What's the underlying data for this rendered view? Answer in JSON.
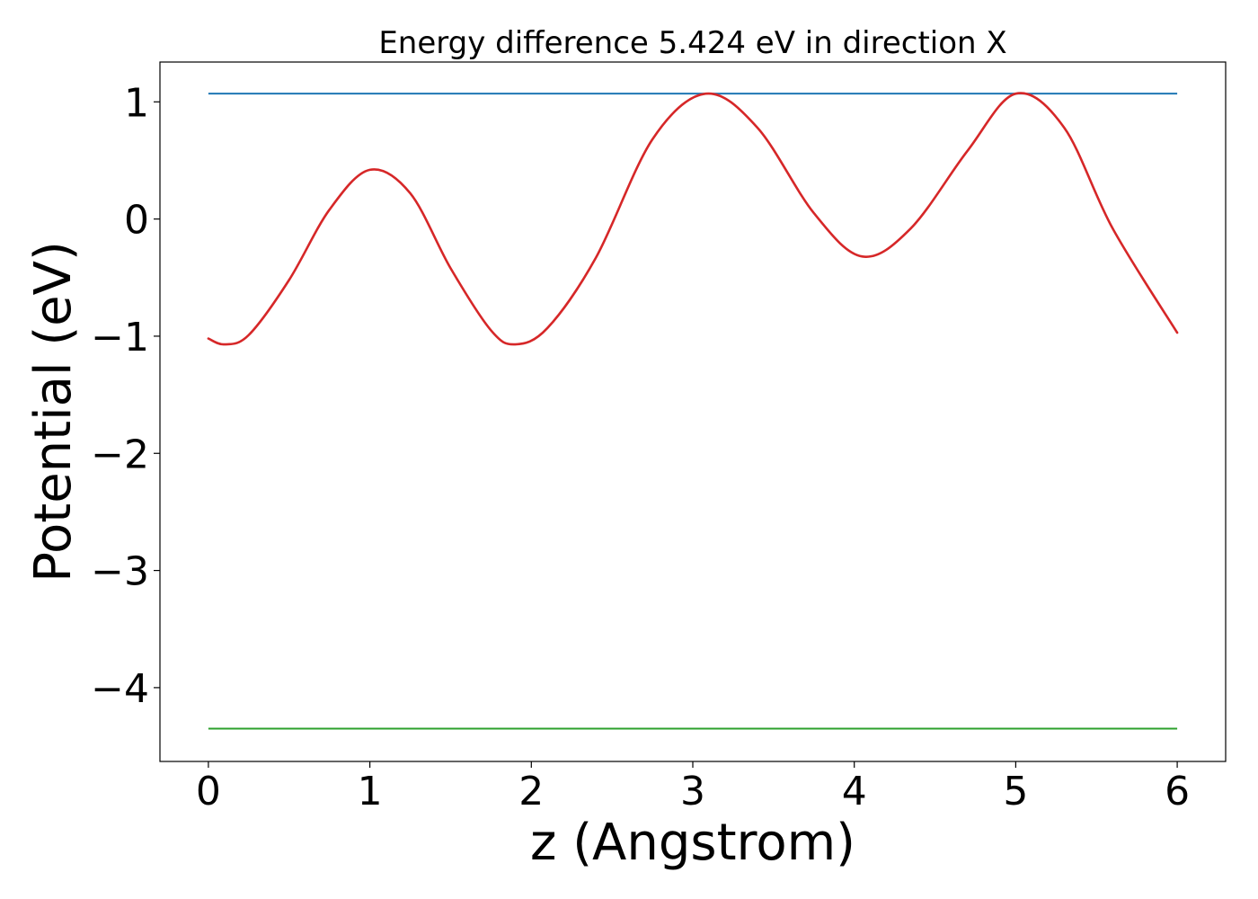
{
  "chart_data": {
    "type": "line",
    "title": "Energy difference 5.424 eV in direction X",
    "xlabel": "z (Angstrom)",
    "ylabel": "Potential (eV)",
    "xlim": [
      -0.3,
      6.3
    ],
    "ylim": [
      -4.63,
      1.34
    ],
    "xticks": [
      0,
      1,
      2,
      3,
      4,
      5,
      6
    ],
    "xtick_labels": [
      "0",
      "1",
      "2",
      "3",
      "4",
      "5",
      "6"
    ],
    "yticks": [
      1,
      0,
      -1,
      -2,
      -3,
      -4
    ],
    "ytick_labels": [
      "1",
      "0",
      "−1",
      "−2",
      "−3",
      "−4"
    ],
    "grid": false,
    "series": [
      {
        "color": "#1f77b4",
        "x": [
          0,
          6
        ],
        "y": [
          1.07,
          1.07
        ]
      },
      {
        "color": "#2ca02c",
        "x": [
          0,
          6
        ],
        "y": [
          -4.35,
          -4.35
        ]
      },
      {
        "color": "#d62728",
        "x": [
          0.0,
          0.1,
          0.25,
          0.5,
          0.75,
          1.0,
          1.25,
          1.5,
          1.75,
          1.9,
          2.1,
          2.4,
          2.75,
          3.08,
          3.4,
          3.75,
          4.05,
          4.35,
          4.7,
          5.0,
          5.3,
          5.6,
          6.0
        ],
        "y": [
          -1.02,
          -1.07,
          -0.99,
          -0.52,
          0.08,
          0.42,
          0.22,
          -0.42,
          -0.95,
          -1.07,
          -0.93,
          -0.33,
          0.68,
          1.07,
          0.78,
          0.05,
          -0.32,
          -0.08,
          0.58,
          1.07,
          0.78,
          -0.08,
          -0.97
        ]
      }
    ]
  }
}
